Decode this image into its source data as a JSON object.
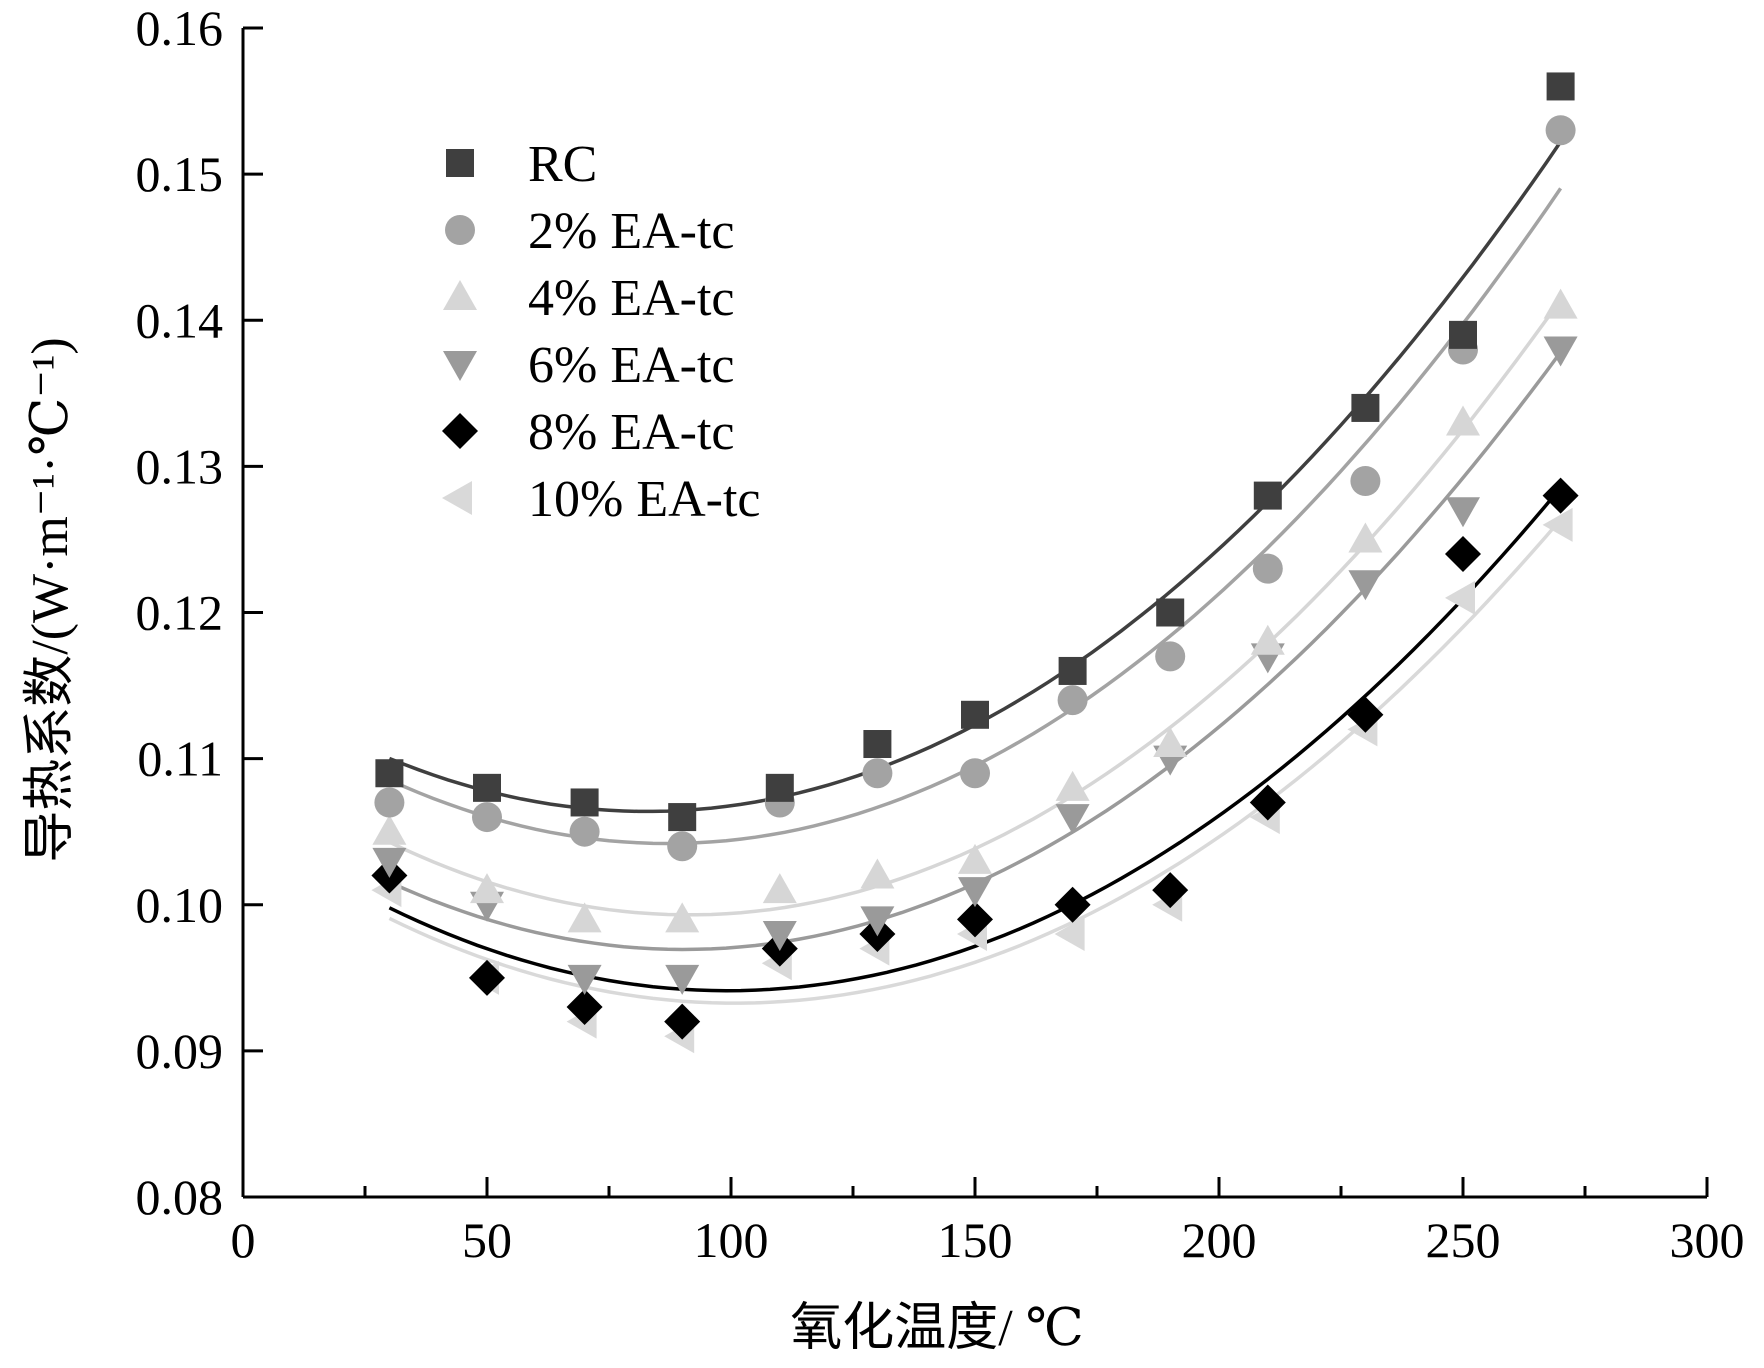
{
  "chart_data": {
    "type": "scatter",
    "xlabel": "氧化温度/ ℃",
    "ylabel": "导热系数/(W·m⁻¹·℃⁻¹)",
    "xlim": [
      0,
      300
    ],
    "ylim": [
      0.08,
      0.16
    ],
    "x_ticks": [
      "0",
      "50",
      "100",
      "150",
      "200",
      "250",
      "300"
    ],
    "y_ticks": [
      "0.08",
      "0.09",
      "0.10",
      "0.11",
      "0.12",
      "0.13",
      "0.14",
      "0.15",
      "0.16"
    ],
    "grid": false,
    "legend_position": "top-left",
    "fit": "quadratic trend lines",
    "x": [
      30,
      50,
      70,
      90,
      110,
      130,
      150,
      170,
      190,
      210,
      230,
      250,
      270
    ],
    "series": [
      {
        "name": "RC",
        "marker": "square",
        "color": "#3f3f3f",
        "values": [
          0.109,
          0.108,
          0.107,
          0.106,
          0.108,
          0.111,
          0.113,
          0.116,
          0.12,
          0.128,
          0.134,
          0.139,
          0.156
        ]
      },
      {
        "name": "2% EA-tc",
        "marker": "circle",
        "color": "#a3a3a3",
        "values": [
          0.107,
          0.106,
          0.105,
          0.104,
          0.107,
          0.109,
          0.109,
          0.114,
          0.117,
          0.123,
          0.129,
          0.138,
          0.153
        ]
      },
      {
        "name": "4% EA-tc",
        "marker": "triangle-up",
        "color": "#d6d6d6",
        "values": [
          0.105,
          0.101,
          0.099,
          0.099,
          0.101,
          0.102,
          0.103,
          0.108,
          0.111,
          0.118,
          0.125,
          0.133,
          0.141
        ]
      },
      {
        "name": "6% EA-tc",
        "marker": "triangle-down",
        "color": "#9a9a9a",
        "values": [
          0.103,
          0.1,
          0.095,
          0.095,
          0.098,
          0.099,
          0.101,
          0.106,
          0.11,
          0.117,
          0.122,
          0.127,
          0.138
        ]
      },
      {
        "name": "8% EA-tc",
        "marker": "diamond",
        "color": "#000000",
        "values": [
          0.102,
          0.095,
          0.093,
          0.092,
          0.097,
          0.098,
          0.099,
          0.1,
          0.101,
          0.107,
          0.113,
          0.124,
          0.128
        ]
      },
      {
        "name": "10% EA-tc",
        "marker": "triangle-left",
        "color": "#d9d9d9",
        "values": [
          0.101,
          0.095,
          0.092,
          0.091,
          0.096,
          0.097,
          0.098,
          0.098,
          0.1,
          0.106,
          0.112,
          0.121,
          0.126
        ]
      }
    ]
  }
}
